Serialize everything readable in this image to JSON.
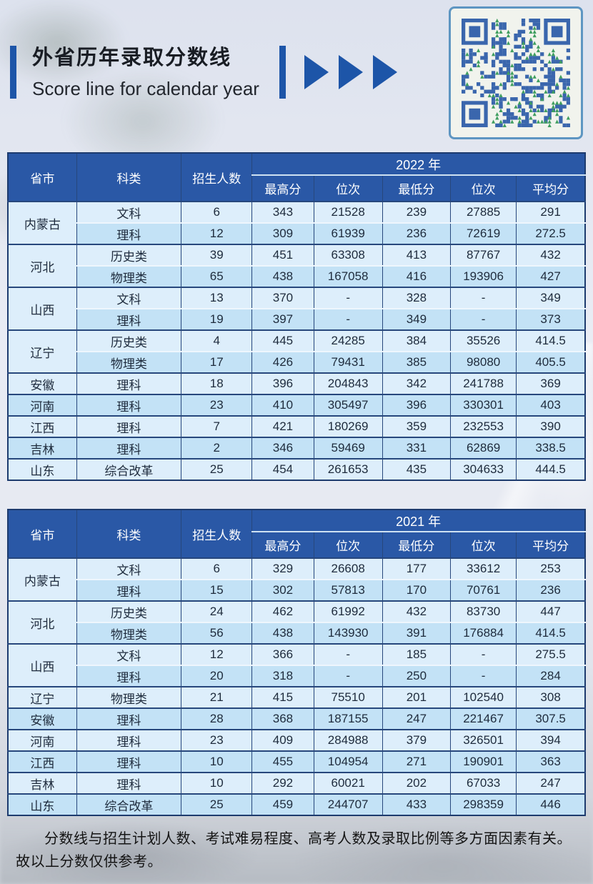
{
  "header": {
    "title": "外省历年录取分数线",
    "subtitle": "Score line for calendar year"
  },
  "colors": {
    "accent_blue": "#1d55a8",
    "table_header_blue": "#2a58a6",
    "row_light": "#ddeefb",
    "row_dark": "#c3e2f6",
    "border_dark": "#27477c",
    "qr_blue": "#3a66ad",
    "qr_green": "#3f9e5f",
    "qr_card_border": "#5e96c2"
  },
  "table_columns": {
    "fixed": [
      "省市",
      "科类",
      "招生人数"
    ],
    "score": [
      "最高分",
      "位次",
      "最低分",
      "位次",
      "平均分"
    ]
  },
  "tables": [
    {
      "year": "2022 年",
      "groups": [
        {
          "province": "内蒙古",
          "rows": [
            {
              "category": "文科",
              "enroll": "6",
              "max": "343",
              "max_rank": "21528",
              "min": "239",
              "min_rank": "27885",
              "avg": "291"
            },
            {
              "category": "理科",
              "enroll": "12",
              "max": "309",
              "max_rank": "61939",
              "min": "236",
              "min_rank": "72619",
              "avg": "272.5"
            }
          ]
        },
        {
          "province": "河北",
          "rows": [
            {
              "category": "历史类",
              "enroll": "39",
              "max": "451",
              "max_rank": "63308",
              "min": "413",
              "min_rank": "87767",
              "avg": "432"
            },
            {
              "category": "物理类",
              "enroll": "65",
              "max": "438",
              "max_rank": "167058",
              "min": "416",
              "min_rank": "193906",
              "avg": "427"
            }
          ]
        },
        {
          "province": "山西",
          "rows": [
            {
              "category": "文科",
              "enroll": "13",
              "max": "370",
              "max_rank": "-",
              "min": "328",
              "min_rank": "-",
              "avg": "349"
            },
            {
              "category": "理科",
              "enroll": "19",
              "max": "397",
              "max_rank": "-",
              "min": "349",
              "min_rank": "-",
              "avg": "373"
            }
          ]
        },
        {
          "province": "辽宁",
          "rows": [
            {
              "category": "历史类",
              "enroll": "4",
              "max": "445",
              "max_rank": "24285",
              "min": "384",
              "min_rank": "35526",
              "avg": "414.5"
            },
            {
              "category": "物理类",
              "enroll": "17",
              "max": "426",
              "max_rank": "79431",
              "min": "385",
              "min_rank": "98080",
              "avg": "405.5"
            }
          ]
        },
        {
          "province": "安徽",
          "rows": [
            {
              "category": "理科",
              "enroll": "18",
              "max": "396",
              "max_rank": "204843",
              "min": "342",
              "min_rank": "241788",
              "avg": "369"
            }
          ]
        },
        {
          "province": "河南",
          "rows": [
            {
              "category": "理科",
              "enroll": "23",
              "max": "410",
              "max_rank": "305497",
              "min": "396",
              "min_rank": "330301",
              "avg": "403"
            }
          ]
        },
        {
          "province": "江西",
          "rows": [
            {
              "category": "理科",
              "enroll": "7",
              "max": "421",
              "max_rank": "180269",
              "min": "359",
              "min_rank": "232553",
              "avg": "390"
            }
          ]
        },
        {
          "province": "吉林",
          "rows": [
            {
              "category": "理科",
              "enroll": "2",
              "max": "346",
              "max_rank": "59469",
              "min": "331",
              "min_rank": "62869",
              "avg": "338.5"
            }
          ]
        },
        {
          "province": "山东",
          "rows": [
            {
              "category": "综合改革",
              "enroll": "25",
              "max": "454",
              "max_rank": "261653",
              "min": "435",
              "min_rank": "304633",
              "avg": "444.5"
            }
          ]
        }
      ]
    },
    {
      "year": "2021 年",
      "groups": [
        {
          "province": "内蒙古",
          "rows": [
            {
              "category": "文科",
              "enroll": "6",
              "max": "329",
              "max_rank": "26608",
              "min": "177",
              "min_rank": "33612",
              "avg": "253"
            },
            {
              "category": "理科",
              "enroll": "15",
              "max": "302",
              "max_rank": "57813",
              "min": "170",
              "min_rank": "70761",
              "avg": "236"
            }
          ]
        },
        {
          "province": "河北",
          "rows": [
            {
              "category": "历史类",
              "enroll": "24",
              "max": "462",
              "max_rank": "61992",
              "min": "432",
              "min_rank": "83730",
              "avg": "447"
            },
            {
              "category": "物理类",
              "enroll": "56",
              "max": "438",
              "max_rank": "143930",
              "min": "391",
              "min_rank": "176884",
              "avg": "414.5"
            }
          ]
        },
        {
          "province": "山西",
          "rows": [
            {
              "category": "文科",
              "enroll": "12",
              "max": "366",
              "max_rank": "-",
              "min": "185",
              "min_rank": "-",
              "avg": "275.5"
            },
            {
              "category": "理科",
              "enroll": "20",
              "max": "318",
              "max_rank": "-",
              "min": "250",
              "min_rank": "-",
              "avg": "284"
            }
          ]
        },
        {
          "province": "辽宁",
          "rows": [
            {
              "category": "物理类",
              "enroll": "21",
              "max": "415",
              "max_rank": "75510",
              "min": "201",
              "min_rank": "102540",
              "avg": "308"
            }
          ]
        },
        {
          "province": "安徽",
          "rows": [
            {
              "category": "理科",
              "enroll": "28",
              "max": "368",
              "max_rank": "187155",
              "min": "247",
              "min_rank": "221467",
              "avg": "307.5"
            }
          ]
        },
        {
          "province": "河南",
          "rows": [
            {
              "category": "理科",
              "enroll": "23",
              "max": "409",
              "max_rank": "284988",
              "min": "379",
              "min_rank": "326501",
              "avg": "394"
            }
          ]
        },
        {
          "province": "江西",
          "rows": [
            {
              "category": "理科",
              "enroll": "10",
              "max": "455",
              "max_rank": "104954",
              "min": "271",
              "min_rank": "190901",
              "avg": "363"
            }
          ]
        },
        {
          "province": "吉林",
          "rows": [
            {
              "category": "理科",
              "enroll": "10",
              "max": "292",
              "max_rank": "60021",
              "min": "202",
              "min_rank": "67033",
              "avg": "247"
            }
          ]
        },
        {
          "province": "山东",
          "rows": [
            {
              "category": "综合改革",
              "enroll": "25",
              "max": "459",
              "max_rank": "244707",
              "min": "433",
              "min_rank": "298359",
              "avg": "446"
            }
          ]
        }
      ]
    }
  ],
  "footnote": "分数线与招生计划人数、考试难易程度、高考人数及录取比例等多方面因素有关。故以上分数仅供参考。"
}
